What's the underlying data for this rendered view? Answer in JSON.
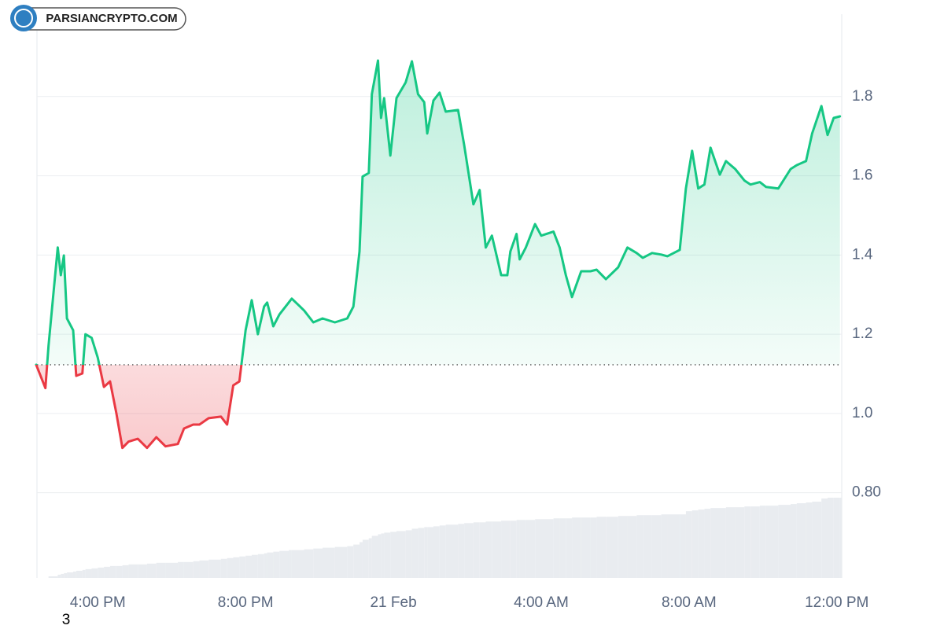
{
  "watermark": "PARSIANCRYPTO.COM",
  "stray_label": "3",
  "chart_data": {
    "type": "line",
    "x": [
      "20 Feb 14:20",
      "20 Feb 14:35",
      "20 Feb 14:40",
      "20 Feb 14:55",
      "20 Feb 15:00",
      "20 Feb 15:05",
      "20 Feb 15:10",
      "20 Feb 15:20",
      "20 Feb 15:25",
      "20 Feb 15:35",
      "20 Feb 15:40",
      "20 Feb 15:50",
      "20 Feb 16:00",
      "20 Feb 16:10",
      "20 Feb 16:20",
      "20 Feb 16:30",
      "20 Feb 16:40",
      "20 Feb 16:50",
      "20 Feb 17:05",
      "20 Feb 17:20",
      "20 Feb 17:35",
      "20 Feb 17:50",
      "20 Feb 18:10",
      "20 Feb 18:20",
      "20 Feb 18:35",
      "20 Feb 18:45",
      "20 Feb 19:00",
      "20 Feb 19:20",
      "20 Feb 19:30",
      "20 Feb 19:40",
      "20 Feb 19:50",
      "20 Feb 20:00",
      "20 Feb 20:10",
      "20 Feb 20:20",
      "20 Feb 20:30",
      "20 Feb 20:35",
      "20 Feb 20:45",
      "20 Feb 20:55",
      "20 Feb 21:10",
      "20 Feb 21:15",
      "20 Feb 21:35",
      "20 Feb 21:50",
      "20 Feb 22:05",
      "20 Feb 22:25",
      "20 Feb 22:45",
      "20 Feb 22:55",
      "20 Feb 23:05",
      "20 Feb 23:10",
      "20 Feb 23:20",
      "20 Feb 23:25",
      "20 Feb 23:35",
      "20 Feb 23:40",
      "20 Feb 23:45",
      "20 Feb 23:55",
      "21 Feb 00:05",
      "21 Feb 00:20",
      "21 Feb 00:30",
      "21 Feb 00:40",
      "21 Feb 00:50",
      "21 Feb 00:55",
      "21 Feb 01:05",
      "21 Feb 01:15",
      "21 Feb 01:25",
      "21 Feb 01:45",
      "21 Feb 01:55",
      "21 Feb 02:10",
      "21 Feb 02:20",
      "21 Feb 02:30",
      "21 Feb 02:40",
      "21 Feb 02:55",
      "21 Feb 03:05",
      "21 Feb 03:10",
      "21 Feb 03:20",
      "21 Feb 03:25",
      "21 Feb 03:35",
      "21 Feb 03:50",
      "21 Feb 04:00",
      "21 Feb 04:20",
      "21 Feb 04:30",
      "21 Feb 04:40",
      "21 Feb 04:50",
      "21 Feb 05:05",
      "21 Feb 05:20",
      "21 Feb 05:30",
      "21 Feb 05:45",
      "21 Feb 06:05",
      "21 Feb 06:20",
      "21 Feb 06:35",
      "21 Feb 06:45",
      "21 Feb 07:00",
      "21 Feb 07:15",
      "21 Feb 07:25",
      "21 Feb 07:45",
      "21 Feb 07:55",
      "21 Feb 08:05",
      "21 Feb 08:15",
      "21 Feb 08:25",
      "21 Feb 08:35",
      "21 Feb 08:50",
      "21 Feb 09:00",
      "21 Feb 09:15",
      "21 Feb 09:30",
      "21 Feb 09:40",
      "21 Feb 09:55",
      "21 Feb 10:05",
      "21 Feb 10:25",
      "21 Feb 10:45",
      "21 Feb 10:55",
      "21 Feb 11:10",
      "21 Feb 11:20",
      "21 Feb 11:35",
      "21 Feb 11:45",
      "21 Feb 11:55",
      "21 Feb 12:05"
    ],
    "series": [
      {
        "color": "#16c784",
        "negative_color": "#ea3943",
        "values": [
          1.123,
          1.064,
          1.171,
          1.419,
          1.349,
          1.399,
          1.24,
          1.21,
          1.095,
          1.101,
          1.2,
          1.191,
          1.141,
          1.067,
          1.081,
          1.002,
          0.913,
          0.929,
          0.936,
          0.913,
          0.94,
          0.917,
          0.923,
          0.962,
          0.972,
          0.972,
          0.988,
          0.992,
          0.972,
          1.071,
          1.081,
          1.21,
          1.286,
          1.2,
          1.27,
          1.28,
          1.22,
          1.25,
          1.28,
          1.29,
          1.26,
          1.23,
          1.24,
          1.23,
          1.24,
          1.27,
          1.409,
          1.598,
          1.607,
          1.806,
          1.891,
          1.746,
          1.796,
          1.651,
          1.796,
          1.836,
          1.889,
          1.806,
          1.786,
          1.707,
          1.79,
          1.81,
          1.762,
          1.766,
          1.677,
          1.528,
          1.564,
          1.419,
          1.449,
          1.349,
          1.349,
          1.409,
          1.453,
          1.389,
          1.419,
          1.478,
          1.449,
          1.459,
          1.419,
          1.349,
          1.294,
          1.359,
          1.359,
          1.363,
          1.339,
          1.369,
          1.419,
          1.405,
          1.393,
          1.405,
          1.401,
          1.397,
          1.413,
          1.568,
          1.663,
          1.568,
          1.578,
          1.671,
          1.603,
          1.637,
          1.617,
          1.588,
          1.578,
          1.584,
          1.572,
          1.568,
          1.617,
          1.627,
          1.637,
          1.707,
          1.776,
          1.703,
          1.746,
          1.75
        ]
      }
    ],
    "volume": {
      "color": "#e9ecf0",
      "values": [
        0,
        0,
        2,
        4,
        5,
        6,
        7,
        8,
        9,
        10,
        11,
        12,
        13,
        14,
        15,
        15,
        16,
        17,
        17,
        18,
        19,
        19,
        20,
        20,
        21,
        22,
        23,
        24,
        25,
        26,
        27,
        28,
        29,
        30,
        31,
        32,
        33,
        34,
        35,
        35,
        36,
        37,
        38,
        39,
        40,
        42,
        45,
        48,
        50,
        53,
        55,
        56,
        57,
        58,
        59,
        60,
        62,
        63,
        64,
        64,
        65,
        66,
        67,
        68,
        69,
        70,
        70,
        71,
        71,
        72,
        72,
        72,
        73,
        73,
        73,
        74,
        74,
        75,
        75,
        75,
        76,
        76,
        76,
        77,
        77,
        78,
        78,
        79,
        79,
        79,
        80,
        80,
        80,
        84,
        85,
        86,
        87,
        88,
        88,
        89,
        89,
        90,
        90,
        91,
        91,
        92,
        93,
        94,
        95,
        96,
        100,
        101,
        101,
        101
      ]
    },
    "baseline": 1.123,
    "xlim": [
      "20 Feb 14:20",
      "21 Feb 12:08"
    ],
    "xticks": [
      {
        "value": "20 Feb 16:00",
        "label": "4:00 PM"
      },
      {
        "value": "20 Feb 20:00",
        "label": "8:00 PM"
      },
      {
        "value": "21 Feb 00:00",
        "label": "21 Feb"
      },
      {
        "value": "21 Feb 04:00",
        "label": "4:00 AM"
      },
      {
        "value": "21 Feb 08:00",
        "label": "8:00 AM"
      },
      {
        "value": "21 Feb 12:00",
        "label": "12:00 PM"
      }
    ],
    "ylim": [
      0.585,
      2.008
    ],
    "yticks": [
      {
        "value": 0.8,
        "label": "0.80"
      },
      {
        "value": 1,
        "label": "1.0"
      },
      1.2,
      1.4,
      1.6,
      1.8
    ],
    "grid": true
  }
}
